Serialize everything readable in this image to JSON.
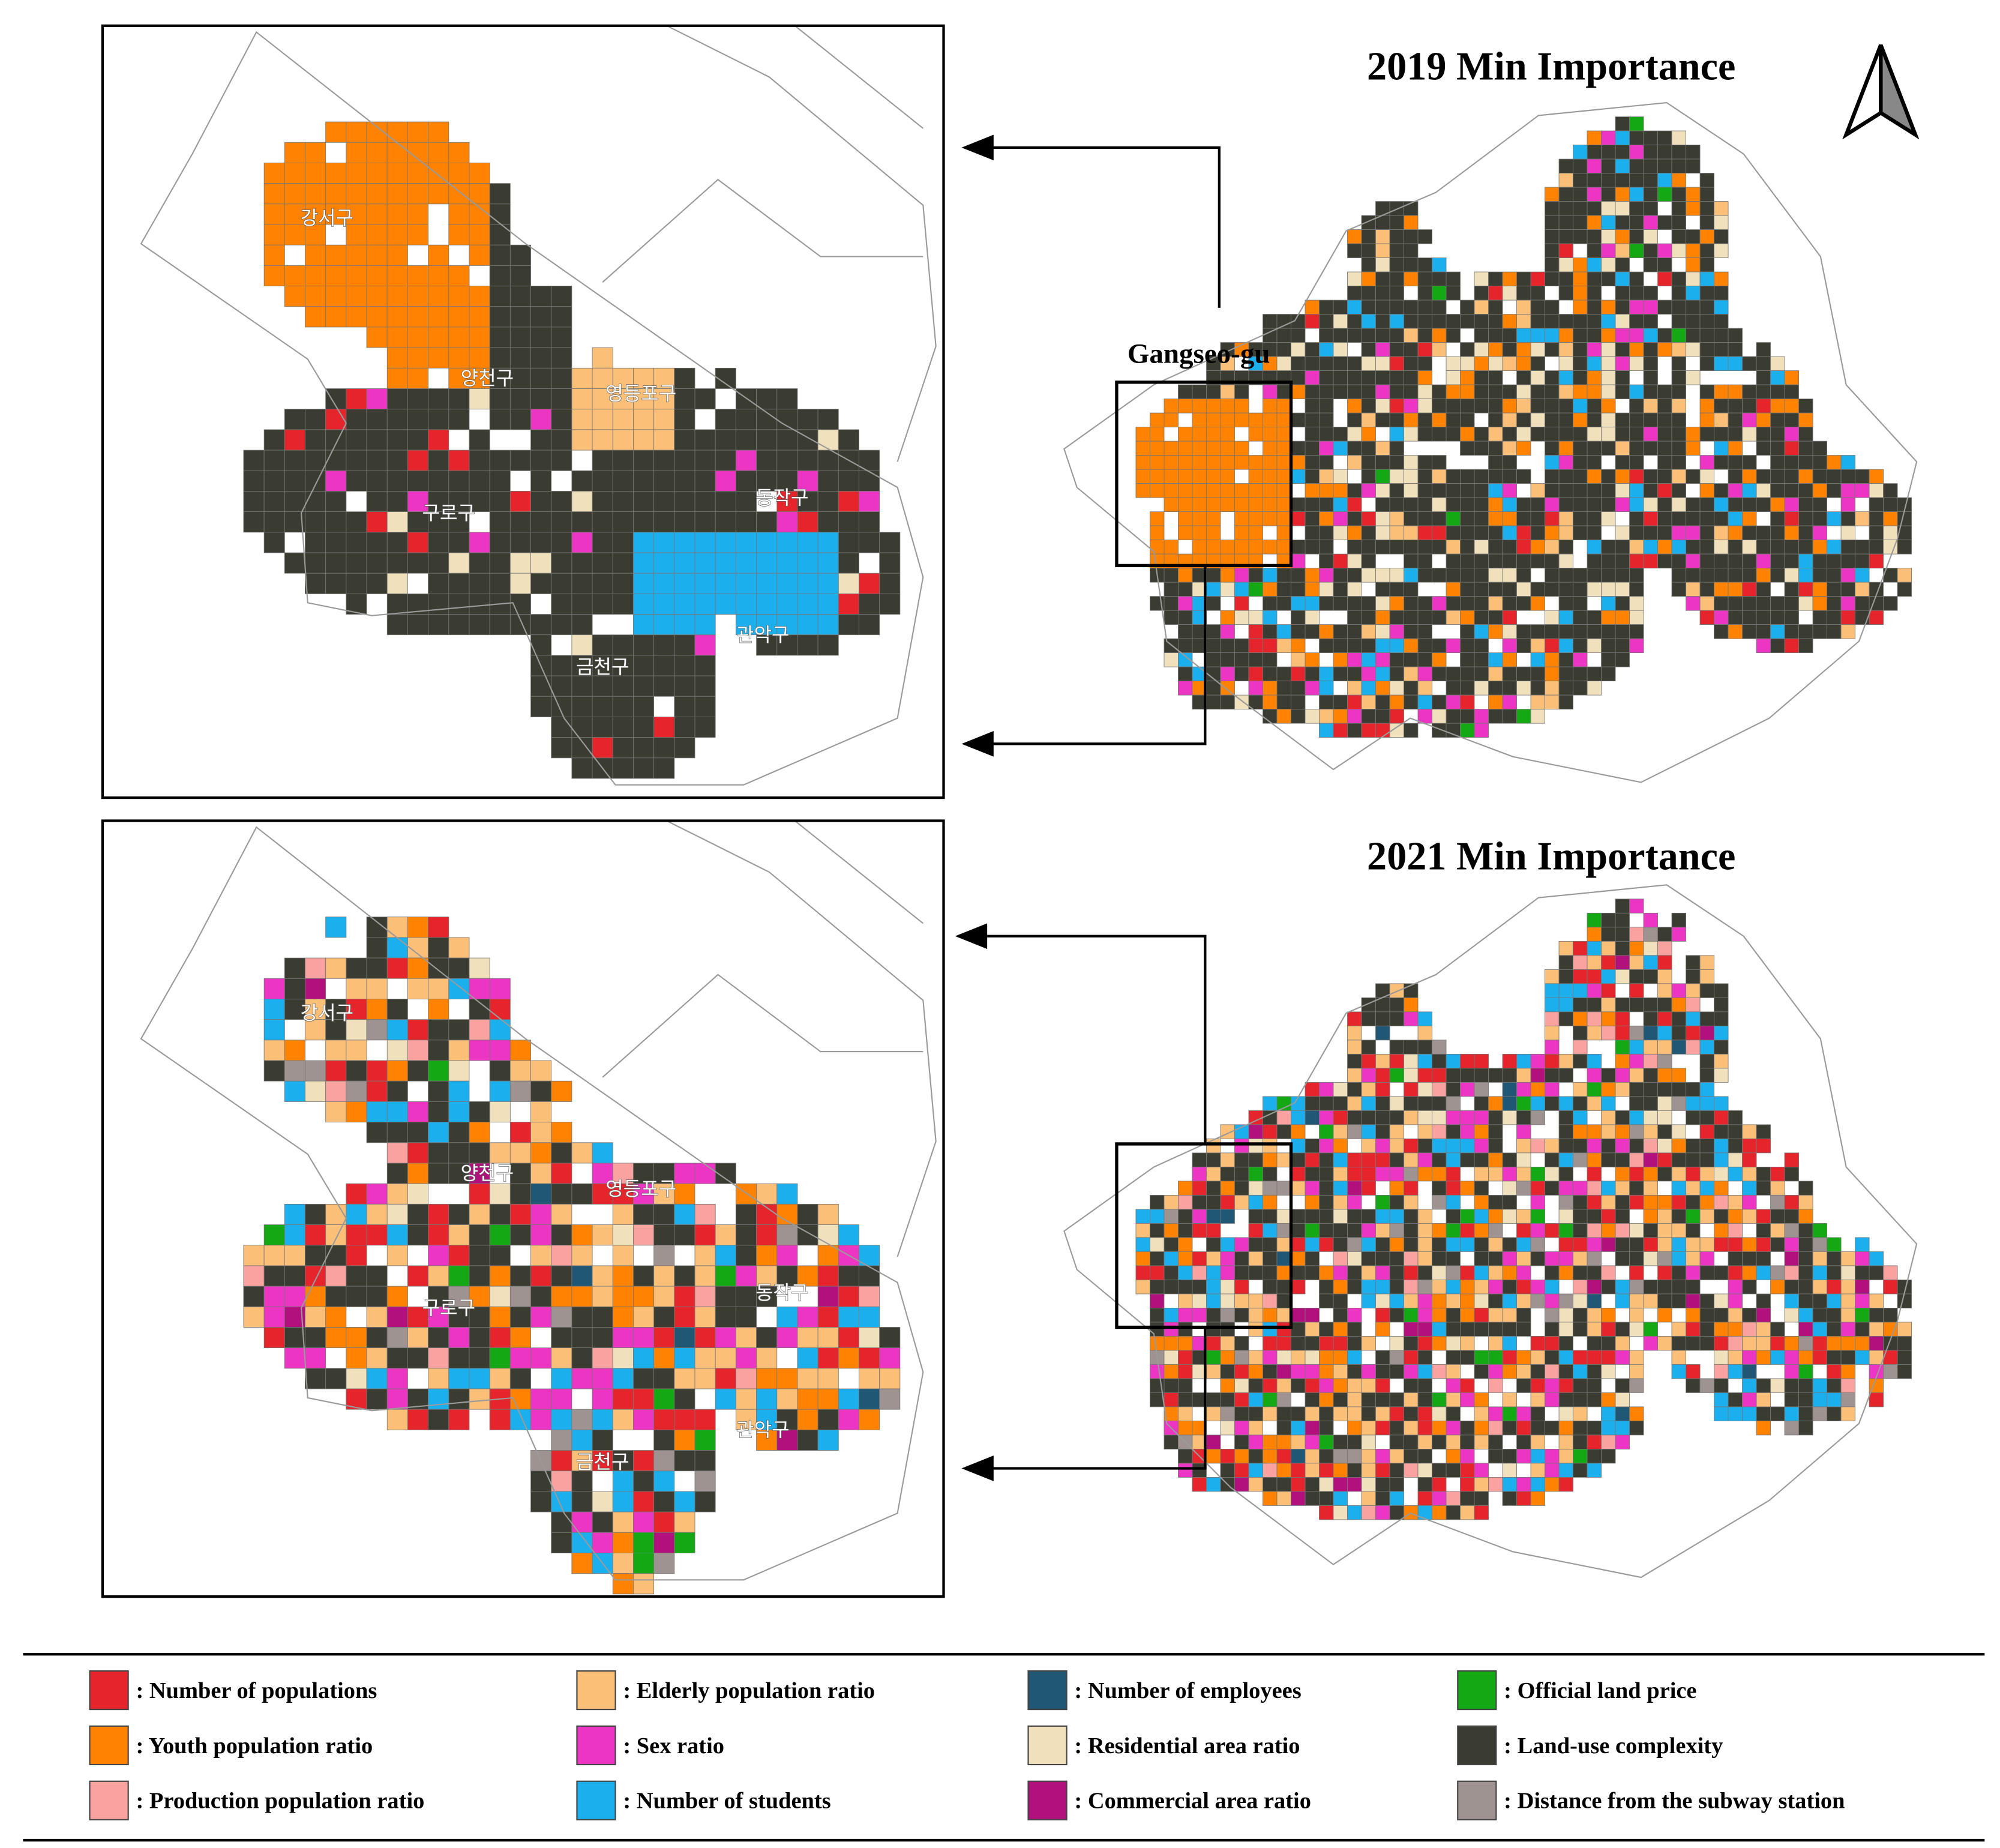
{
  "maps": [
    {
      "title": "2019 Min Importance",
      "highlight_label": "Gangseo-gu",
      "inset_labels": [
        "강서구",
        "양천구",
        "영등포구",
        "구로구",
        "동작구",
        "관악구",
        "금천구"
      ]
    },
    {
      "title": "2021 Min Importance",
      "inset_labels": [
        "강서구",
        "양천구",
        "영등포구",
        "구로구",
        "동작구",
        "관악구",
        "금천구"
      ]
    }
  ],
  "legend": [
    {
      "label": ": Number of populations",
      "color": "#e5242b"
    },
    {
      "label": ": Youth population ratio",
      "color": "#ff8200"
    },
    {
      "label": ": Production population ratio",
      "color": "#f9a2a0"
    },
    {
      "label": ": Elderly population ratio",
      "color": "#fbbf78"
    },
    {
      "label": ": Sex ratio",
      "color": "#ec35c3"
    },
    {
      "label": ": Number of students",
      "color": "#1bb0ed"
    },
    {
      "label": ": Number of employees",
      "color": "#1f5775"
    },
    {
      "label": ": Residential area ratio",
      "color": "#f0e1bc"
    },
    {
      "label": ": Commercial area ratio",
      "color": "#b2107c"
    },
    {
      "label": ": Official land price",
      "color": "#14a914"
    },
    {
      "label": ": Land-use complexity",
      "color": "#3a3c31"
    },
    {
      "label": ": Distance from the subway station",
      "color": "#9f9392"
    }
  ]
}
